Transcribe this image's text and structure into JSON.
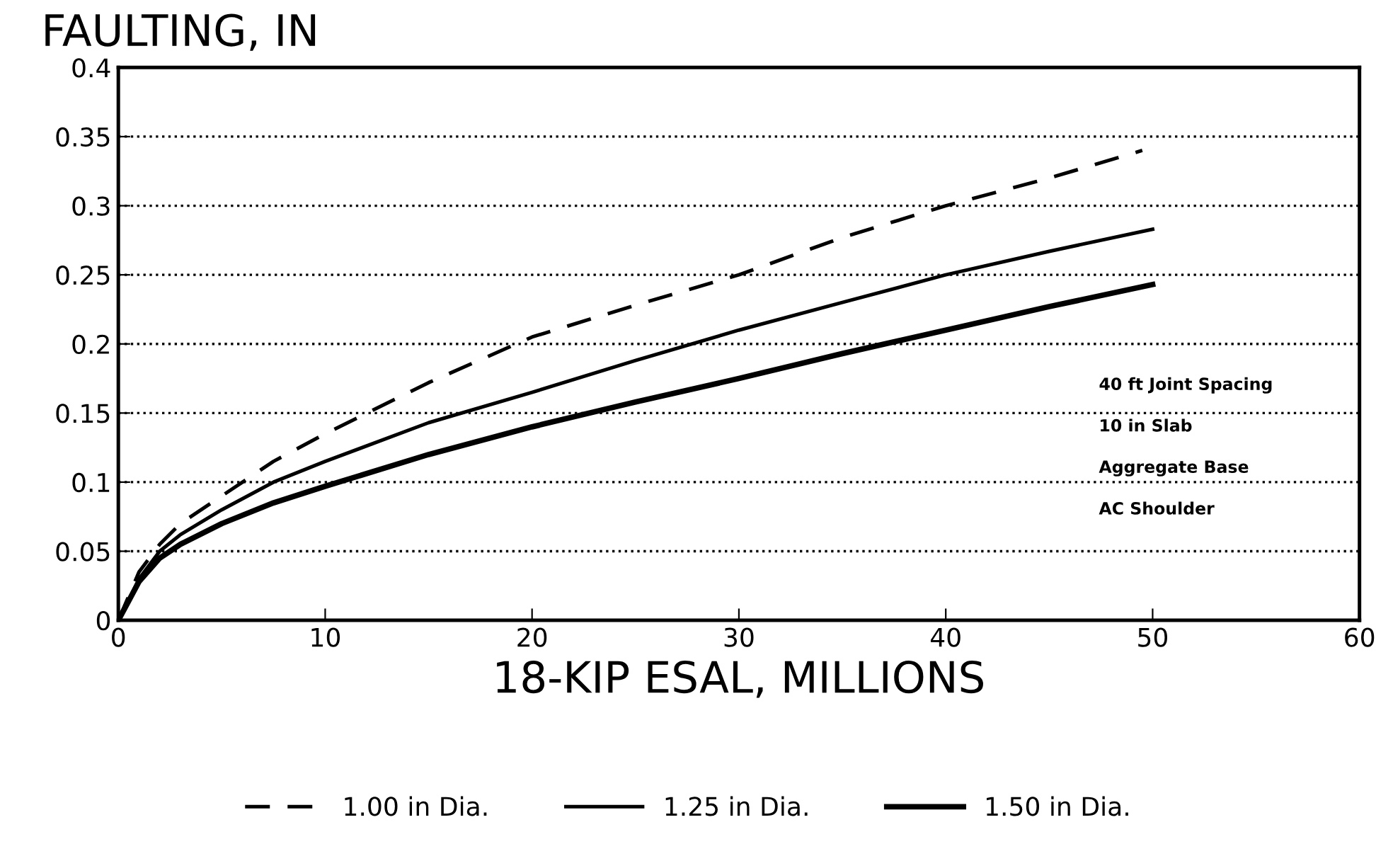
{
  "chart_data": {
    "type": "line",
    "title": "FAULTING, IN",
    "xlabel": "18-KIP ESAL, MILLIONS",
    "annotations": [
      "40 ft Joint Spacing",
      "10 in Slab",
      "Aggregate Base",
      "AC Shoulder"
    ],
    "xlim": [
      0,
      60
    ],
    "xticks": [
      0,
      10,
      20,
      30,
      40,
      50,
      60
    ],
    "ylim": [
      0,
      0.4
    ],
    "yticks": [
      0,
      0.05,
      0.1,
      0.15,
      0.2,
      0.25,
      0.3,
      0.35,
      0.4
    ],
    "grid": "y",
    "legend": "bottom",
    "marker": "none",
    "series": [
      {
        "name": "1.00 in Dia.",
        "color": "#000000",
        "line_style": "dashed",
        "x": [
          0,
          1,
          2,
          3,
          5,
          7.5,
          10,
          15,
          20,
          25,
          30,
          35,
          40,
          45,
          49.5
        ],
        "values": [
          0,
          0.035,
          0.055,
          0.07,
          0.09,
          0.115,
          0.135,
          0.172,
          0.205,
          0.228,
          0.25,
          0.277,
          0.3,
          0.32,
          0.34
        ]
      },
      {
        "name": "1.25 in Dia.",
        "color": "#000000",
        "line_style": "solid",
        "x": [
          0,
          1,
          2,
          3,
          5,
          7.5,
          10,
          15,
          20,
          25,
          30,
          35,
          40,
          45,
          50
        ],
        "values": [
          0,
          0.03,
          0.05,
          0.062,
          0.08,
          0.1,
          0.115,
          0.143,
          0.165,
          0.188,
          0.21,
          0.23,
          0.25,
          0.267,
          0.283
        ]
      },
      {
        "name": "1.50 in Dia.",
        "color": "#000000",
        "line_style": "solid",
        "x": [
          0,
          1,
          2,
          3,
          5,
          7.5,
          10,
          15,
          20,
          25,
          30,
          35,
          40,
          45,
          50
        ],
        "values": [
          0,
          0.028,
          0.045,
          0.055,
          0.07,
          0.085,
          0.097,
          0.12,
          0.14,
          0.158,
          0.175,
          0.193,
          0.21,
          0.227,
          0.243
        ]
      }
    ]
  }
}
